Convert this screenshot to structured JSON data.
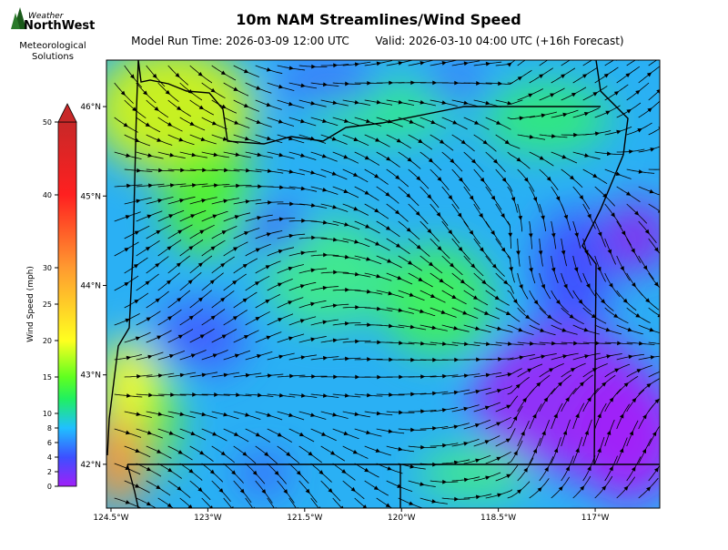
{
  "header": {
    "title": "10m NAM Streamlines/Wind Speed",
    "run_time": "Model Run Time: 2026-03-09 12:00 UTC",
    "valid_time": "Valid: 2026-03-10 04:00 UTC  (+16h Forecast)"
  },
  "logo": {
    "top": "Weather",
    "name": "NorthWest",
    "line1": "Meteorological",
    "line2": "Solutions"
  },
  "map": {
    "xlim": [
      -124.57,
      -116.0
    ],
    "ylim": [
      41.51,
      46.52
    ],
    "xticks": [
      {
        "value": -124.5,
        "label": "124.5°W"
      },
      {
        "value": -123,
        "label": "123°W"
      },
      {
        "value": -121.5,
        "label": "121.5°W"
      },
      {
        "value": -120,
        "label": "120°W"
      },
      {
        "value": -118.5,
        "label": "118.5°W"
      },
      {
        "value": -117,
        "label": "117°W"
      }
    ],
    "yticks": [
      {
        "value": 42,
        "label": "42°N"
      },
      {
        "value": 43,
        "label": "43°N"
      },
      {
        "value": 44,
        "label": "44°N"
      },
      {
        "value": 45,
        "label": "45°N"
      },
      {
        "value": 46,
        "label": "46°N"
      }
    ]
  },
  "colorbar": {
    "label": "Wind Speed (mph)",
    "lim": [
      0,
      50
    ],
    "ticks": [
      0,
      2,
      4,
      6,
      8,
      10,
      15,
      20,
      25,
      30,
      40,
      50
    ]
  }
}
